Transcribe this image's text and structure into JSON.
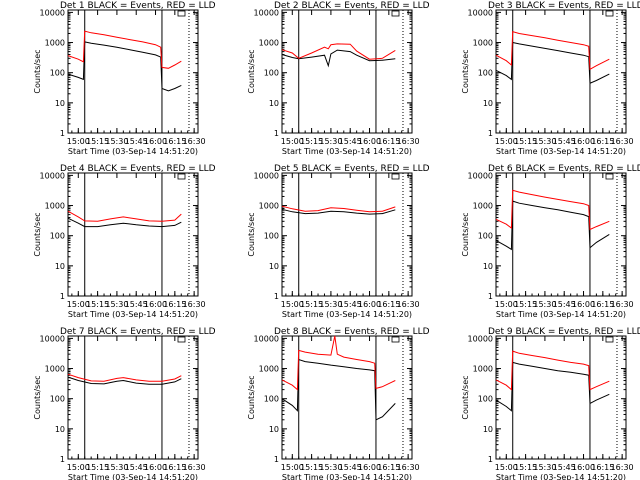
{
  "colors": {
    "events": "#000000",
    "lld": "#ff0000",
    "frame": "#000000"
  },
  "chart_data": [
    {
      "type": "line",
      "title": "Det 1  BLACK = Events, RED = LLD",
      "xlabel": "Start Time (03-Sep-14 14:51:20)",
      "ylabel": "Counts/sec",
      "yscale": "log",
      "ylim": [
        1,
        12000
      ],
      "x_tick_labels": [
        "15:00",
        "15:15",
        "15:30",
        "15:45",
        "16:00",
        "16:15",
        "16:30"
      ],
      "y_tick_labels": [
        "1",
        "10",
        "100",
        "1000",
        "10000"
      ],
      "vertical_markers": [
        "15:05",
        "16:05"
      ],
      "dotted_marker": "16:26",
      "series": [
        {
          "name": "BLACK = Events",
          "x": [
            "14:52",
            "15:00",
            "15:04",
            "15:05",
            "15:10",
            "15:20",
            "15:30",
            "15:40",
            "15:50",
            "16:00",
            "16:04",
            "16:05",
            "16:10",
            "16:15",
            "16:20"
          ],
          "y": [
            90,
            70,
            60,
            1050,
            950,
            820,
            700,
            580,
            480,
            390,
            330,
            30,
            25,
            30,
            38
          ]
        },
        {
          "name": "RED = LLD",
          "x": [
            "14:52",
            "15:00",
            "15:04",
            "15:05",
            "15:10",
            "15:20",
            "15:30",
            "15:40",
            "15:50",
            "16:00",
            "16:04",
            "16:05",
            "16:10",
            "16:15",
            "16:20"
          ],
          "y": [
            370,
            280,
            230,
            2400,
            2100,
            1800,
            1500,
            1250,
            1050,
            850,
            700,
            150,
            140,
            180,
            240
          ]
        }
      ]
    },
    {
      "type": "line",
      "title": "Det 2  BLACK = Events, RED = LLD",
      "xlabel": "Start Time (03-Sep-14 14:51:20)",
      "ylabel": "Counts/sec",
      "yscale": "log",
      "ylim": [
        1,
        12000
      ],
      "x_tick_labels": [
        "15:00",
        "15:15",
        "15:30",
        "15:45",
        "16:00",
        "16:15",
        "16:30"
      ],
      "y_tick_labels": [
        "1",
        "10",
        "100",
        "1000",
        "10000"
      ],
      "vertical_markers": [
        "15:05",
        "16:05"
      ],
      "dotted_marker": "16:26",
      "series": [
        {
          "name": "BLACK = Events",
          "x": [
            "14:52",
            "15:00",
            "15:05",
            "15:15",
            "15:25",
            "15:28",
            "15:30",
            "15:35",
            "15:45",
            "15:50",
            "16:00",
            "16:10",
            "16:20"
          ],
          "y": [
            400,
            320,
            290,
            330,
            380,
            170,
            420,
            560,
            500,
            380,
            250,
            260,
            290
          ]
        },
        {
          "name": "RED = LLD",
          "x": [
            "14:52",
            "15:00",
            "15:05",
            "15:15",
            "15:25",
            "15:28",
            "15:30",
            "15:35",
            "15:45",
            "15:50",
            "16:00",
            "16:10",
            "16:20"
          ],
          "y": [
            580,
            450,
            300,
            450,
            700,
            620,
            850,
            900,
            880,
            520,
            280,
            300,
            550
          ]
        }
      ]
    },
    {
      "type": "line",
      "title": "Det 3  BLACK = Events, RED = LLD",
      "xlabel": "Start Time (03-Sep-14 14:51:20)",
      "ylabel": "Counts/sec",
      "yscale": "log",
      "ylim": [
        1,
        12000
      ],
      "x_tick_labels": [
        "15:00",
        "15:15",
        "15:30",
        "15:45",
        "16:00",
        "16:15",
        "16:30"
      ],
      "y_tick_labels": [
        "1",
        "10",
        "100",
        "1000",
        "10000"
      ],
      "vertical_markers": [
        "15:05",
        "16:05"
      ],
      "dotted_marker": "16:26",
      "series": [
        {
          "name": "BLACK = Events",
          "x": [
            "14:52",
            "15:00",
            "15:04",
            "15:05",
            "15:10",
            "15:20",
            "15:30",
            "15:40",
            "15:50",
            "16:00",
            "16:04",
            "16:05",
            "16:10",
            "16:20"
          ],
          "y": [
            120,
            80,
            60,
            1000,
            900,
            760,
            640,
            540,
            450,
            380,
            340,
            45,
            55,
            90
          ]
        },
        {
          "name": "RED = LLD",
          "x": [
            "14:52",
            "15:00",
            "15:04",
            "15:05",
            "15:10",
            "15:20",
            "15:30",
            "15:40",
            "15:50",
            "16:00",
            "16:04",
            "16:05",
            "16:10",
            "16:20"
          ],
          "y": [
            380,
            250,
            180,
            2300,
            2000,
            1700,
            1450,
            1200,
            1000,
            850,
            750,
            130,
            170,
            280
          ]
        }
      ]
    },
    {
      "type": "line",
      "title": "Det 4  BLACK = Events, RED = LLD",
      "xlabel": "Start Time (03-Sep-14 14:51:20)",
      "ylabel": "Counts/sec",
      "yscale": "log",
      "ylim": [
        1,
        12000
      ],
      "x_tick_labels": [
        "15:00",
        "15:15",
        "15:30",
        "15:45",
        "16:00",
        "16:15",
        "16:30"
      ],
      "y_tick_labels": [
        "1",
        "10",
        "100",
        "1000",
        "10000"
      ],
      "vertical_markers": [
        "15:05",
        "16:05"
      ],
      "dotted_marker": "16:26",
      "series": [
        {
          "name": "BLACK = Events",
          "x": [
            "14:52",
            "15:00",
            "15:05",
            "15:15",
            "15:25",
            "15:35",
            "15:45",
            "15:55",
            "16:05",
            "16:15",
            "16:20"
          ],
          "y": [
            380,
            260,
            200,
            200,
            230,
            260,
            230,
            210,
            200,
            220,
            280
          ]
        },
        {
          "name": "RED = LLD",
          "x": [
            "14:52",
            "15:00",
            "15:05",
            "15:15",
            "15:25",
            "15:35",
            "15:45",
            "15:55",
            "16:05",
            "16:15",
            "16:20"
          ],
          "y": [
            650,
            420,
            310,
            300,
            360,
            420,
            360,
            310,
            300,
            330,
            520
          ]
        }
      ]
    },
    {
      "type": "line",
      "title": "Det 5  BLACK = Events, RED = LLD",
      "xlabel": "Start Time (03-Sep-14 14:51:20)",
      "ylabel": "Counts/sec",
      "yscale": "log",
      "ylim": [
        1,
        12000
      ],
      "x_tick_labels": [
        "15:00",
        "15:15",
        "15:30",
        "15:45",
        "16:00",
        "16:15",
        "16:30"
      ],
      "y_tick_labels": [
        "1",
        "10",
        "100",
        "1000",
        "10000"
      ],
      "vertical_markers": [
        "15:05",
        "16:05"
      ],
      "dotted_marker": "16:26",
      "series": [
        {
          "name": "BLACK = Events",
          "x": [
            "14:52",
            "15:00",
            "15:10",
            "15:20",
            "15:30",
            "15:40",
            "15:50",
            "16:00",
            "16:10",
            "16:20"
          ],
          "y": [
            750,
            620,
            540,
            560,
            650,
            620,
            560,
            520,
            540,
            720
          ]
        },
        {
          "name": "RED = LLD",
          "x": [
            "14:52",
            "15:00",
            "15:10",
            "15:20",
            "15:30",
            "15:40",
            "15:50",
            "16:00",
            "16:10",
            "16:20"
          ],
          "y": [
            950,
            780,
            650,
            680,
            850,
            800,
            700,
            620,
            650,
            900
          ]
        }
      ]
    },
    {
      "type": "line",
      "title": "Det 6  BLACK = Events, RED = LLD",
      "xlabel": "Start Time (03-Sep-14 14:51:20)",
      "ylabel": "Counts/sec",
      "yscale": "log",
      "ylim": [
        1,
        12000
      ],
      "x_tick_labels": [
        "15:00",
        "15:15",
        "15:30",
        "15:45",
        "16:00",
        "16:15",
        "16:30"
      ],
      "y_tick_labels": [
        "1",
        "10",
        "100",
        "1000",
        "10000"
      ],
      "vertical_markers": [
        "15:05",
        "16:05"
      ],
      "dotted_marker": "16:26",
      "series": [
        {
          "name": "BLACK = Events",
          "x": [
            "14:52",
            "15:00",
            "15:04",
            "15:05",
            "15:10",
            "15:20",
            "15:30",
            "15:40",
            "15:50",
            "16:00",
            "16:04",
            "16:05",
            "16:10",
            "16:20"
          ],
          "y": [
            70,
            45,
            35,
            1400,
            1200,
            1000,
            850,
            720,
            600,
            500,
            430,
            40,
            60,
            110
          ]
        },
        {
          "name": "RED = LLD",
          "x": [
            "14:52",
            "15:00",
            "15:04",
            "15:05",
            "15:10",
            "15:20",
            "15:30",
            "15:40",
            "15:50",
            "16:00",
            "16:04",
            "16:05",
            "16:10",
            "16:20"
          ],
          "y": [
            350,
            240,
            180,
            3200,
            2800,
            2300,
            1900,
            1600,
            1350,
            1150,
            1000,
            160,
            200,
            300
          ]
        }
      ]
    },
    {
      "type": "line",
      "title": "Det 7  BLACK = Events, RED = LLD",
      "xlabel": "Start Time (03-Sep-14 14:51:20)",
      "ylabel": "Counts/sec",
      "yscale": "log",
      "ylim": [
        1,
        12000
      ],
      "x_tick_labels": [
        "15:00",
        "15:15",
        "15:30",
        "15:45",
        "16:00",
        "16:15",
        "16:30"
      ],
      "y_tick_labels": [
        "1",
        "10",
        "100",
        "1000",
        "10000"
      ],
      "vertical_markers": [
        "15:05",
        "16:05"
      ],
      "dotted_marker": "16:26",
      "series": [
        {
          "name": "BLACK = Events",
          "x": [
            "14:52",
            "15:00",
            "15:10",
            "15:20",
            "15:30",
            "15:35",
            "15:45",
            "15:55",
            "16:05",
            "16:15",
            "16:20"
          ],
          "y": [
            520,
            400,
            320,
            310,
            380,
            400,
            330,
            300,
            300,
            360,
            460
          ]
        },
        {
          "name": "RED = LLD",
          "x": [
            "14:52",
            "15:00",
            "15:10",
            "15:20",
            "15:30",
            "15:35",
            "15:45",
            "15:55",
            "16:05",
            "16:15",
            "16:20"
          ],
          "y": [
            650,
            500,
            390,
            380,
            470,
            500,
            420,
            380,
            380,
            450,
            580
          ]
        }
      ]
    },
    {
      "type": "line",
      "title": "Det 8  BLACK = Events, RED = LLD",
      "xlabel": "Start Time (03-Sep-14 14:51:20)",
      "ylabel": "Counts/sec",
      "yscale": "log",
      "ylim": [
        1,
        12000
      ],
      "x_tick_labels": [
        "15:00",
        "15:15",
        "15:30",
        "15:45",
        "16:00",
        "16:15",
        "16:30"
      ],
      "y_tick_labels": [
        "1",
        "10",
        "100",
        "1000",
        "10000"
      ],
      "vertical_markers": [
        "15:05",
        "16:05"
      ],
      "dotted_marker": "16:26",
      "series": [
        {
          "name": "BLACK = Events",
          "x": [
            "14:52",
            "15:00",
            "15:04",
            "15:05",
            "15:10",
            "15:20",
            "15:30",
            "15:40",
            "15:50",
            "16:00",
            "16:04",
            "16:05",
            "16:10",
            "16:20"
          ],
          "y": [
            100,
            60,
            40,
            2000,
            1700,
            1500,
            1300,
            1150,
            1000,
            900,
            850,
            20,
            25,
            70
          ]
        },
        {
          "name": "RED = LLD",
          "x": [
            "14:52",
            "15:00",
            "15:04",
            "15:05",
            "15:10",
            "15:20",
            "15:30",
            "15:33",
            "15:35",
            "15:40",
            "15:50",
            "16:00",
            "16:04",
            "16:05",
            "16:10",
            "16:20"
          ],
          "y": [
            420,
            280,
            200,
            4000,
            3500,
            3000,
            2800,
            12000,
            3000,
            2400,
            2000,
            1700,
            1500,
            220,
            250,
            400
          ]
        }
      ]
    },
    {
      "type": "line",
      "title": "Det 9  BLACK = Events, RED = LLD",
      "xlabel": "Start Time (03-Sep-14 14:51:20)",
      "ylabel": "Counts/sec",
      "yscale": "log",
      "ylim": [
        1,
        12000
      ],
      "x_tick_labels": [
        "15:00",
        "15:15",
        "15:30",
        "15:45",
        "16:00",
        "16:15",
        "16:30"
      ],
      "y_tick_labels": [
        "1",
        "10",
        "100",
        "1000",
        "10000"
      ],
      "vertical_markers": [
        "15:05",
        "16:05"
      ],
      "dotted_marker": "16:26",
      "series": [
        {
          "name": "BLACK = Events",
          "x": [
            "14:52",
            "15:00",
            "15:04",
            "15:05",
            "15:10",
            "15:20",
            "15:30",
            "15:40",
            "15:50",
            "16:00",
            "16:04",
            "16:05",
            "16:10",
            "16:20"
          ],
          "y": [
            90,
            55,
            40,
            1600,
            1400,
            1200,
            1000,
            850,
            750,
            650,
            600,
            70,
            90,
            140
          ]
        },
        {
          "name": "RED = LLD",
          "x": [
            "14:52",
            "15:00",
            "15:04",
            "15:05",
            "15:10",
            "15:20",
            "15:30",
            "15:40",
            "15:50",
            "16:00",
            "16:04",
            "16:05",
            "16:10",
            "16:20"
          ],
          "y": [
            420,
            280,
            200,
            3800,
            3200,
            2700,
            2300,
            1900,
            1600,
            1400,
            1250,
            200,
            250,
            380
          ]
        }
      ]
    }
  ]
}
